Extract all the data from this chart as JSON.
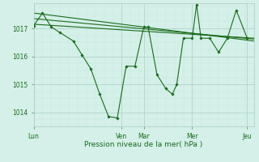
{
  "bg_color": "#d4f0e8",
  "grid_color_major": "#aacfc8",
  "grid_color_minor": "#c8e8e0",
  "line_color": "#1a6b1a",
  "xlabel": "Pression niveau de la mer( hPa )",
  "xtick_labels": [
    "Lun",
    "Ven",
    "Mar",
    "Mer",
    "Jeu"
  ],
  "xtick_positions": [
    0.0,
    0.4,
    0.5,
    0.72,
    0.97
  ],
  "ytick_labels": [
    "1014",
    "1015",
    "1016",
    "1017"
  ],
  "ytick_positions": [
    1014,
    1015,
    1016,
    1017
  ],
  "ylim": [
    1013.5,
    1017.9
  ],
  "xlim": [
    0.0,
    1.0
  ],
  "trend1": {
    "x": [
      0.0,
      1.0
    ],
    "y": [
      1017.55,
      1016.55
    ]
  },
  "trend2": {
    "x": [
      0.0,
      1.0
    ],
    "y": [
      1017.35,
      1016.62
    ]
  },
  "trend3": {
    "x": [
      0.0,
      1.0
    ],
    "y": [
      1017.15,
      1016.65
    ]
  },
  "main_series": {
    "x": [
      0.0,
      0.04,
      0.08,
      0.12,
      0.18,
      0.22,
      0.26,
      0.3,
      0.34,
      0.38,
      0.42,
      0.46,
      0.5,
      0.52,
      0.56,
      0.6,
      0.63,
      0.65,
      0.68,
      0.72,
      0.74,
      0.76,
      0.8,
      0.84,
      0.88,
      0.92,
      0.97
    ],
    "y": [
      1017.1,
      1017.55,
      1017.05,
      1016.85,
      1016.55,
      1016.05,
      1015.55,
      1014.65,
      1013.85,
      1013.8,
      1015.65,
      1015.65,
      1017.05,
      1017.05,
      1015.35,
      1014.85,
      1014.65,
      1015.0,
      1016.65,
      1016.65,
      1017.85,
      1016.65,
      1016.65,
      1016.15,
      1016.65,
      1017.65,
      1016.65
    ]
  }
}
